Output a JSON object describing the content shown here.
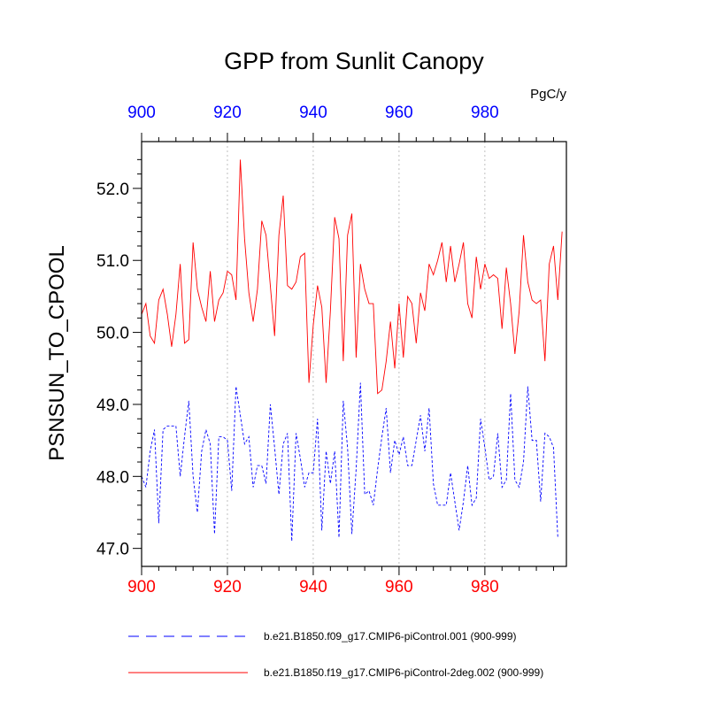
{
  "chart_data": {
    "type": "line",
    "title": "GPP from Sunlit Canopy",
    "units": "PgC/y",
    "ylabel": "PSNSUN_TO_CPOOL",
    "xlim": [
      900,
      999
    ],
    "ylim": [
      46.75,
      52.65
    ],
    "yticks": [
      "47.0",
      "48.0",
      "49.0",
      "50.0",
      "51.0",
      "52.0"
    ],
    "xticks_bottom": [
      "900",
      "920",
      "940",
      "960",
      "980"
    ],
    "xticks_top": [
      "900",
      "920",
      "940",
      "960",
      "980"
    ],
    "grid": "vertical dotted lines at major x ticks",
    "legend_position": "bottom",
    "series": [
      {
        "name": "b.e21.B1850.f09_g17.CMIP6-piControl.001 (900-999)",
        "color": "#0000ff",
        "style": "dashed",
        "x_start": 900,
        "values": [
          48.0,
          47.85,
          48.35,
          48.65,
          47.35,
          48.65,
          48.7,
          48.7,
          48.7,
          48.0,
          48.55,
          49.05,
          48.0,
          47.5,
          48.35,
          48.65,
          48.45,
          47.2,
          48.55,
          48.55,
          48.5,
          47.8,
          49.25,
          48.85,
          48.45,
          48.55,
          47.85,
          48.15,
          48.15,
          47.9,
          49.0,
          48.4,
          47.75,
          48.45,
          48.6,
          47.1,
          48.6,
          48.25,
          47.85,
          48.05,
          48.05,
          48.8,
          47.25,
          48.35,
          47.9,
          48.35,
          47.15,
          49.05,
          48.4,
          47.2,
          48.1,
          49.3,
          47.75,
          47.8,
          47.6,
          48.1,
          48.55,
          48.95,
          48.05,
          48.5,
          48.3,
          48.55,
          48.15,
          48.15,
          48.5,
          48.85,
          48.35,
          48.95,
          47.9,
          47.6,
          47.6,
          47.6,
          48.05,
          47.65,
          47.25,
          47.65,
          48.15,
          47.6,
          47.7,
          48.8,
          48.4,
          47.95,
          48.0,
          48.6,
          47.85,
          47.95,
          49.15,
          47.95,
          47.85,
          48.2,
          49.25,
          48.5,
          48.5,
          47.65,
          48.6,
          48.55,
          48.4,
          47.15
        ]
      },
      {
        "name": "b.e21.B1850.f19_g17.CMIP6-piControl-2deg.002 (900-999)",
        "color": "#ff0000",
        "style": "solid",
        "x_start": 900,
        "values": [
          50.25,
          50.4,
          49.95,
          49.85,
          50.45,
          50.6,
          50.25,
          49.8,
          50.25,
          50.95,
          49.85,
          49.9,
          51.25,
          50.6,
          50.35,
          50.15,
          50.85,
          50.15,
          50.45,
          50.55,
          50.85,
          50.8,
          50.45,
          52.4,
          51.3,
          50.55,
          50.15,
          50.6,
          51.55,
          51.35,
          50.65,
          49.95,
          51.35,
          51.9,
          50.65,
          50.6,
          50.7,
          51.05,
          51.1,
          49.3,
          50.1,
          50.65,
          50.35,
          49.3,
          50.3,
          51.6,
          51.3,
          49.6,
          51.35,
          51.65,
          49.65,
          50.95,
          50.6,
          50.4,
          50.4,
          49.15,
          49.2,
          49.6,
          50.15,
          49.5,
          50.4,
          49.65,
          50.5,
          50.4,
          49.85,
          50.55,
          50.3,
          50.95,
          50.8,
          51.0,
          51.25,
          50.7,
          51.2,
          50.7,
          50.95,
          51.25,
          50.4,
          50.2,
          51.05,
          50.6,
          50.95,
          50.75,
          50.8,
          50.75,
          50.05,
          50.9,
          50.4,
          49.7,
          50.3,
          51.35,
          50.7,
          50.45,
          50.4,
          50.45,
          49.6,
          50.95,
          51.2,
          50.45,
          51.4
        ]
      }
    ]
  }
}
